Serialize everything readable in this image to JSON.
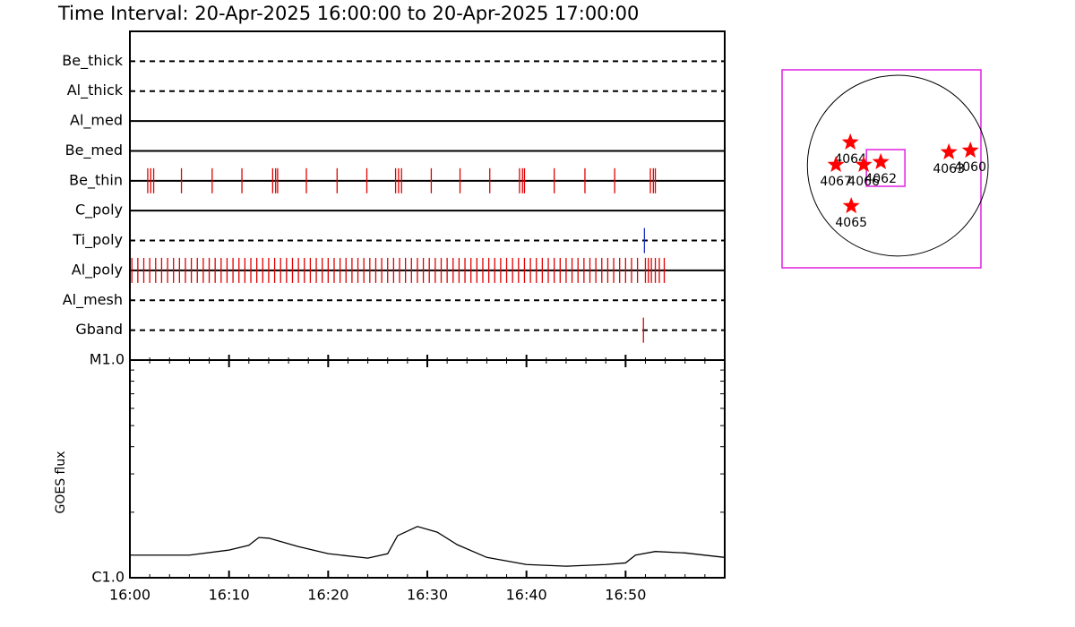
{
  "title": "Time Interval: 20-Apr-2025 16:00:00 to 20-Apr-2025 17:00:00",
  "chart_data": [
    {
      "type": "timeline",
      "xlim": [
        0,
        60
      ],
      "rows": [
        {
          "name": "Be_thick",
          "line": "dashed",
          "color": "#e00000",
          "events": []
        },
        {
          "name": "Al_thick",
          "line": "dashed",
          "color": "#e00000",
          "events": []
        },
        {
          "name": "Al_med",
          "line": "solid",
          "color": "#e00000",
          "events": []
        },
        {
          "name": "Be_med",
          "line": "solid",
          "color": "#e00000",
          "events": []
        },
        {
          "name": "Be_thin",
          "line": "solid",
          "color": "#e00000",
          "events": [
            1.8,
            2.1,
            2.4,
            5.2,
            8.3,
            11.3,
            14.4,
            14.7,
            14.9,
            17.8,
            20.9,
            23.9,
            26.8,
            27.1,
            27.4,
            30.4,
            33.3,
            36.3,
            39.3,
            39.6,
            39.8,
            42.8,
            45.9,
            48.9,
            52.5,
            52.8,
            53.0
          ]
        },
        {
          "name": "C_poly",
          "line": "solid",
          "color": "#e00000",
          "events": []
        },
        {
          "name": "Ti_poly",
          "line": "dashed",
          "color": "#2030c0",
          "events": [
            51.9
          ]
        },
        {
          "name": "Al_poly",
          "line": "solid",
          "color": "#e00000",
          "events": [
            0.2,
            0.8,
            1.4,
            2.0,
            2.6,
            3.2,
            3.8,
            4.4,
            5.0,
            5.6,
            6.2,
            6.8,
            7.4,
            8.0,
            8.6,
            9.2,
            9.8,
            10.4,
            11.0,
            11.6,
            12.2,
            12.8,
            13.4,
            14.0,
            14.6,
            15.2,
            15.8,
            16.4,
            17.0,
            17.6,
            18.2,
            18.8,
            19.4,
            20.0,
            20.6,
            21.2,
            21.8,
            22.4,
            23.0,
            23.6,
            24.2,
            24.8,
            25.4,
            26.0,
            26.6,
            27.2,
            27.8,
            28.4,
            29.0,
            29.6,
            30.2,
            30.8,
            31.4,
            32.0,
            32.6,
            33.2,
            33.8,
            34.4,
            35.0,
            35.6,
            36.2,
            36.8,
            37.4,
            38.0,
            38.6,
            39.2,
            39.8,
            40.4,
            41.0,
            41.6,
            42.2,
            42.8,
            43.4,
            44.0,
            44.6,
            45.2,
            45.8,
            46.4,
            47.0,
            47.6,
            48.2,
            48.8,
            49.4,
            50.0,
            50.6,
            51.2,
            52.0,
            52.3,
            52.6,
            53.0,
            53.4,
            53.9
          ]
        },
        {
          "name": "Al_mesh",
          "line": "dashed",
          "color": "#e00000",
          "events": []
        },
        {
          "name": "Gband",
          "line": "dashed",
          "color": "#e00000",
          "events": [
            51.8
          ]
        }
      ]
    },
    {
      "type": "line",
      "ylabel": "GOES flux",
      "log": true,
      "color": "#000000",
      "x": [
        0,
        6,
        10,
        12,
        13,
        14,
        17,
        20,
        24,
        26,
        27,
        29,
        31,
        33,
        36,
        40,
        44,
        48,
        50,
        51,
        53,
        56,
        60
      ],
      "values": [
        1.27e-06,
        1.27e-06,
        1.34e-06,
        1.41e-06,
        1.53e-06,
        1.52e-06,
        1.39e-06,
        1.29e-06,
        1.23e-06,
        1.29e-06,
        1.56e-06,
        1.72e-06,
        1.62e-06,
        1.42e-06,
        1.24e-06,
        1.15e-06,
        1.13e-06,
        1.15e-06,
        1.17e-06,
        1.27e-06,
        1.32e-06,
        1.3e-06,
        1.24e-06
      ],
      "xlim": [
        0,
        60
      ],
      "xticks": [
        {
          "value": 0,
          "label": "16:00"
        },
        {
          "value": 10,
          "label": "16:10"
        },
        {
          "value": 20,
          "label": "16:20"
        },
        {
          "value": 30,
          "label": "16:30"
        },
        {
          "value": 40,
          "label": "16:40"
        },
        {
          "value": 50,
          "label": "16:50"
        }
      ],
      "xminorticks": [
        2,
        4,
        6,
        8,
        12,
        14,
        16,
        18,
        22,
        24,
        26,
        28,
        32,
        34,
        36,
        38,
        42,
        44,
        46,
        48,
        52,
        54,
        56,
        58
      ],
      "ylim": [
        1e-06,
        1e-05
      ],
      "yticks": [
        {
          "value": 1e-06,
          "label": "C1.0"
        },
        {
          "value": 1e-05,
          "label": "M1.0"
        }
      ],
      "yminorticks": [
        2e-06,
        3e-06,
        4e-06,
        5e-06,
        6e-06,
        7e-06,
        8e-06,
        9e-06
      ]
    },
    {
      "type": "scatter",
      "xlim": [
        -1280,
        920
      ],
      "ylim": [
        -1130,
        1060
      ],
      "disk_radius": 1000,
      "frame_color": "#e020e0",
      "color": "#ff0000",
      "fov": {
        "x": [
          -347,
          79
        ],
        "y": [
          -228,
          178
        ]
      },
      "labels": [
        "4064",
        "4067",
        "4066",
        "4062",
        "4063",
        "4060",
        "4065"
      ],
      "x": [
        -525,
        -684,
        -377,
        -188,
        565,
        803,
        -515
      ],
      "y": [
        258,
        10,
        10,
        40,
        149,
        168,
        -446
      ]
    }
  ]
}
